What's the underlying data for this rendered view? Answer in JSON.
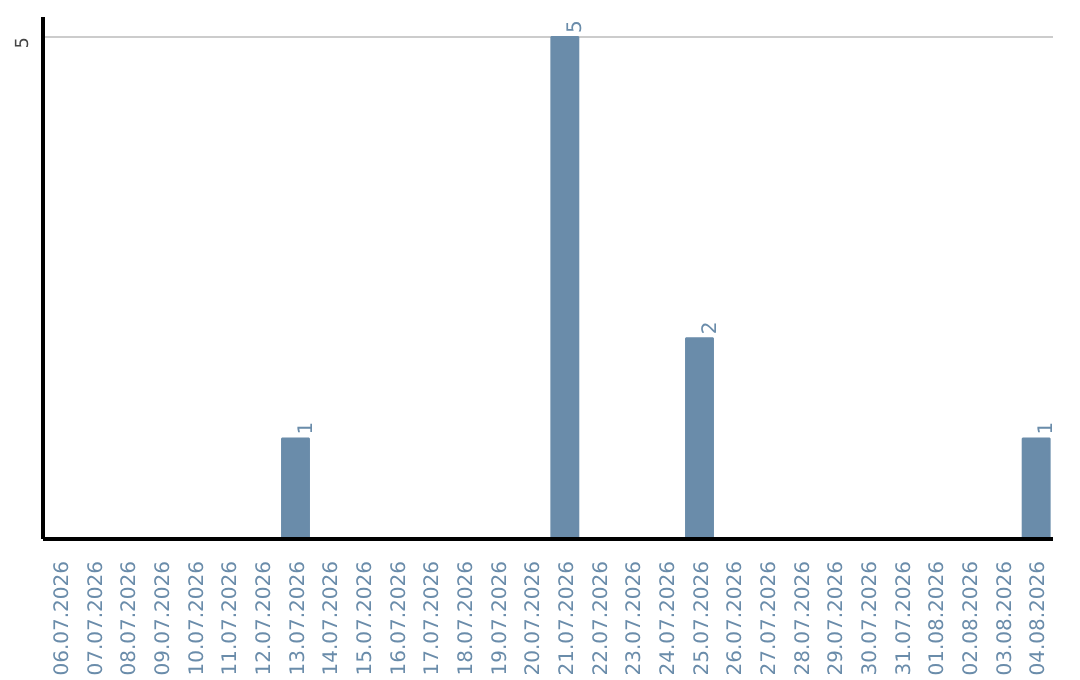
{
  "chart_data": {
    "type": "bar",
    "categories": [
      "06.07.2026",
      "07.07.2026",
      "08.07.2026",
      "09.07.2026",
      "10.07.2026",
      "11.07.2026",
      "12.07.2026",
      "13.07.2026",
      "14.07.2026",
      "15.07.2026",
      "16.07.2026",
      "17.07.2026",
      "18.07.2026",
      "19.07.2026",
      "20.07.2026",
      "21.07.2026",
      "22.07.2026",
      "23.07.2026",
      "24.07.2026",
      "25.07.2026",
      "26.07.2026",
      "27.07.2026",
      "28.07.2026",
      "29.07.2026",
      "30.07.2026",
      "31.07.2026",
      "01.08.2026",
      "02.08.2026",
      "03.08.2026",
      "04.08.2026"
    ],
    "values": [
      0,
      0,
      0,
      0,
      0,
      0,
      0,
      1,
      0,
      0,
      0,
      0,
      0,
      0,
      0,
      5,
      0,
      0,
      0,
      2,
      0,
      0,
      0,
      0,
      0,
      0,
      0,
      0,
      0,
      1
    ],
    "value_labels": [
      null,
      null,
      null,
      null,
      null,
      null,
      null,
      "1",
      null,
      null,
      null,
      null,
      null,
      null,
      null,
      "5",
      null,
      null,
      null,
      "2",
      null,
      null,
      null,
      null,
      null,
      null,
      null,
      null,
      null,
      "1"
    ],
    "color": "#6a8caa",
    "ylim": [
      0,
      5.2
    ],
    "yticks": [
      5
    ],
    "grid": "y"
  }
}
